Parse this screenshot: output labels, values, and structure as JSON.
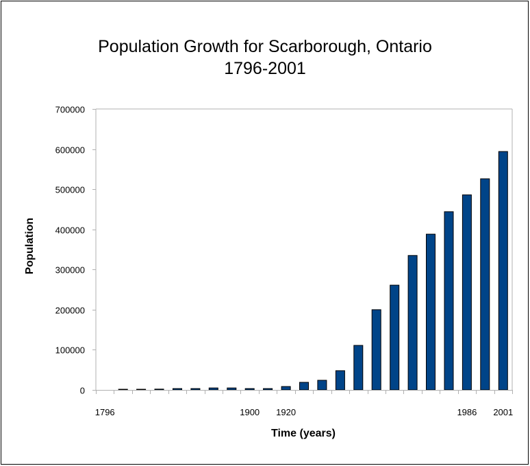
{
  "chart_data": {
    "type": "bar",
    "title": "Population Growth for Scarborough, Ontario",
    "subtitle": "1796-2001",
    "xlabel": "Time (years)",
    "ylabel": "Population",
    "ylim": [
      0,
      700000
    ],
    "yticks": [
      "0",
      "100000",
      "200000",
      "300000",
      "400000",
      "500000",
      "600000",
      "700000"
    ],
    "ytick_values": [
      0,
      100000,
      200000,
      300000,
      400000,
      500000,
      600000,
      700000
    ],
    "category_count": 23,
    "xtick_labels": [
      {
        "index": 0,
        "label": "1796"
      },
      {
        "index": 8,
        "label": "1900"
      },
      {
        "index": 10,
        "label": "1920"
      },
      {
        "index": 20,
        "label": "1986"
      },
      {
        "index": 22,
        "label": "2001"
      }
    ],
    "values": [
      0,
      300,
      600,
      2000,
      3500,
      3500,
      5000,
      5000,
      3500,
      3500,
      8500,
      19000,
      24000,
      48000,
      111000,
      200000,
      261000,
      335000,
      388000,
      444000,
      486000,
      526000,
      594000
    ],
    "bar_color": "#004488",
    "bar_edge_color": "#000000",
    "axis_color": "#b0b0b0",
    "grid": false,
    "legend": "none"
  }
}
